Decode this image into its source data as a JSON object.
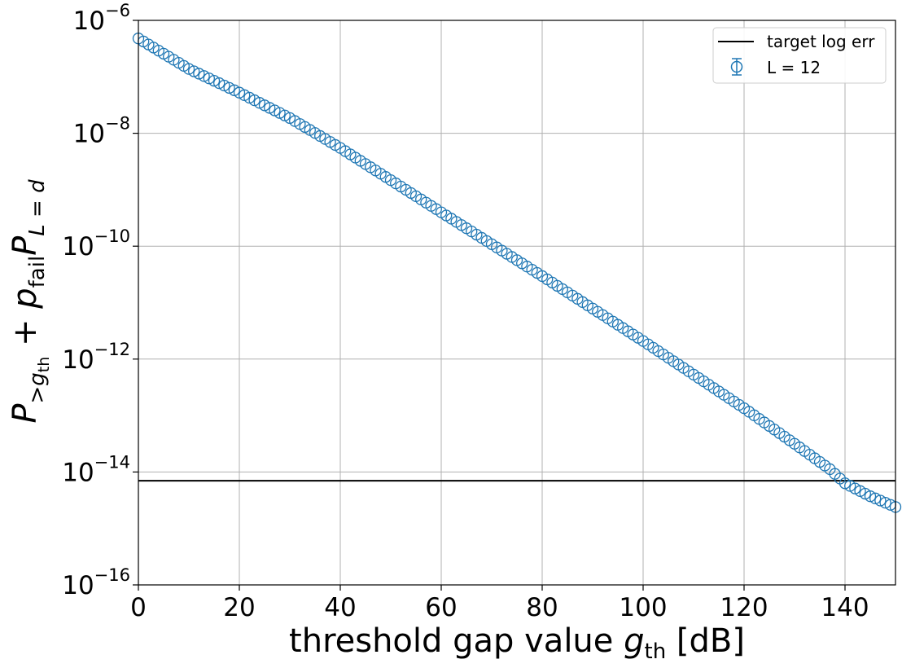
{
  "chart_data": {
    "type": "scatter",
    "title": "",
    "xlabel": {
      "main": "threshold gap value ",
      "var": "g",
      "sub": "th",
      "unit": " [dB]"
    },
    "ylabel": {
      "p1": "P",
      "p1sub1": ">",
      "p1sub_var": "g",
      "p1sub_sub": "th",
      "plus": " + ",
      "p2": "p",
      "p2sub": "fail",
      "p3": "P",
      "p3sub": "L = d"
    },
    "xlim": [
      0,
      150
    ],
    "ylim": [
      1e-16,
      1e-06
    ],
    "y_scale": "log",
    "x_ticks": [
      0,
      20,
      40,
      60,
      80,
      100,
      120,
      140
    ],
    "x_tick_labels": [
      "0",
      "20",
      "40",
      "60",
      "80",
      "100",
      "120",
      "140"
    ],
    "y_ticks": [
      {
        "base": "10",
        "exp": "−16",
        "value": 1e-16
      },
      {
        "base": "10",
        "exp": "−14",
        "value": 1e-14
      },
      {
        "base": "10",
        "exp": "−12",
        "value": 1e-12
      },
      {
        "base": "10",
        "exp": "−10",
        "value": 1e-10
      },
      {
        "base": "10",
        "exp": "−8",
        "value": 1e-08
      },
      {
        "base": "10",
        "exp": "−6",
        "value": 1e-06
      }
    ],
    "grid": true,
    "legend_position": "top-right",
    "reference_line": {
      "name": "target log err",
      "y": 7e-15,
      "color": "#000000"
    },
    "series": {
      "name": "L = 12",
      "color": "#1f77b4",
      "marker": "open-circle",
      "x_start": 0,
      "x_end": 150,
      "x_step": 1,
      "log10_y_anchors": [
        [
          0,
          -6.32
        ],
        [
          10,
          -6.86
        ],
        [
          20,
          -7.28
        ],
        [
          30,
          -7.73
        ],
        [
          40,
          -8.26
        ],
        [
          60,
          -9.4
        ],
        [
          80,
          -10.53
        ],
        [
          100,
          -11.68
        ],
        [
          120,
          -12.87
        ],
        [
          130,
          -13.5
        ],
        [
          137,
          -13.95
        ],
        [
          140,
          -14.2
        ],
        [
          145,
          -14.43
        ],
        [
          150,
          -14.62
        ]
      ]
    }
  }
}
